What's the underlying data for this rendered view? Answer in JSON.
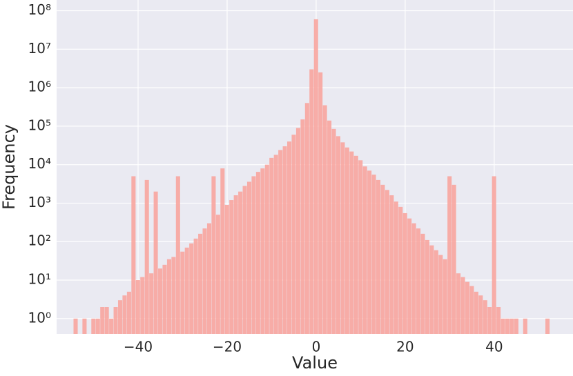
{
  "chart_data": {
    "type": "histogram",
    "x_label": "Value",
    "y_label": "Frequency",
    "bins": [
      -54.5,
      -53.5,
      -52.5,
      -51.5,
      -50.5,
      -49.5,
      -48.5,
      -47.5,
      -46.5,
      -45.5,
      -44.5,
      -43.5,
      -42.5,
      -41.5,
      -40.5,
      -39.5,
      -38.5,
      -37.5,
      -36.5,
      -35.5,
      -34.5,
      -33.5,
      -32.5,
      -31.5,
      -30.5,
      -29.5,
      -28.5,
      -27.5,
      -26.5,
      -25.5,
      -24.5,
      -23.5,
      -22.5,
      -21.5,
      -20.5,
      -19.5,
      -18.5,
      -17.5,
      -16.5,
      -15.5,
      -14.5,
      -13.5,
      -12.5,
      -11.5,
      -10.5,
      -9.5,
      -8.5,
      -7.5,
      -6.5,
      -5.5,
      -4.5,
      -3.5,
      -2.5,
      -1.5,
      -0.5,
      0.5,
      1.5,
      2.5,
      3.5,
      4.5,
      5.5,
      6.5,
      7.5,
      8.5,
      9.5,
      10.5,
      11.5,
      12.5,
      13.5,
      14.5,
      15.5,
      16.5,
      17.5,
      18.5,
      19.5,
      20.5,
      21.5,
      22.5,
      23.5,
      24.5,
      25.5,
      26.5,
      27.5,
      28.5,
      29.5,
      30.5,
      31.5,
      32.5,
      33.5,
      34.5,
      35.5,
      36.5,
      37.5,
      38.5,
      39.5,
      40.5,
      41.5,
      42.5,
      43.5,
      44.5,
      45.5,
      46.5,
      47.5,
      48.5,
      49.5,
      50.5,
      51.5,
      52.5
    ],
    "values": [
      1,
      0,
      1,
      0,
      1,
      1,
      2,
      2,
      1,
      2,
      3,
      4,
      5,
      5000,
      10,
      12,
      4000,
      15,
      2000,
      20,
      25,
      35,
      40,
      5000,
      55,
      70,
      90,
      120,
      160,
      220,
      300,
      5000,
      500,
      8000,
      900,
      1200,
      1600,
      2000,
      2800,
      3600,
      5000,
      6500,
      8000,
      10000,
      15000,
      18000,
      24000,
      30000,
      40000,
      60000,
      90000,
      150000,
      400000,
      3000000,
      60000000,
      2500000,
      350000,
      140000,
      85000,
      55000,
      38000,
      28000,
      22000,
      17000,
      13000,
      9000,
      7000,
      5500,
      4000,
      3000,
      2200,
      1600,
      1100,
      800,
      550,
      400,
      300,
      220,
      160,
      110,
      80,
      60,
      45,
      35,
      5000,
      3000,
      15,
      12,
      9,
      7,
      5,
      4,
      3,
      2,
      5000,
      2,
      1,
      1,
      1,
      1,
      0,
      1,
      0,
      0,
      0,
      0,
      1
    ],
    "color": "#f8a59e",
    "xlim": [
      -58.3,
      57.7
    ],
    "xticks": [
      {
        "value": -40,
        "label": "−40"
      },
      {
        "value": -20,
        "label": "−20"
      },
      0,
      20,
      40
    ],
    "ylim": [
      0.4,
      190000000
    ],
    "log_y": true,
    "yticks": [
      {
        "value": 1,
        "label": "10⁰"
      },
      {
        "value": 10,
        "label": "10¹"
      },
      {
        "value": 100,
        "label": "10²"
      },
      {
        "value": 1000,
        "label": "10³"
      },
      {
        "value": 10000,
        "label": "10⁴"
      },
      {
        "value": 100000,
        "label": "10⁵"
      },
      {
        "value": 1000000,
        "label": "10⁶"
      },
      {
        "value": 10000000,
        "label": "10⁷"
      },
      {
        "value": 100000000,
        "label": "10⁸"
      }
    ],
    "grid": true
  }
}
